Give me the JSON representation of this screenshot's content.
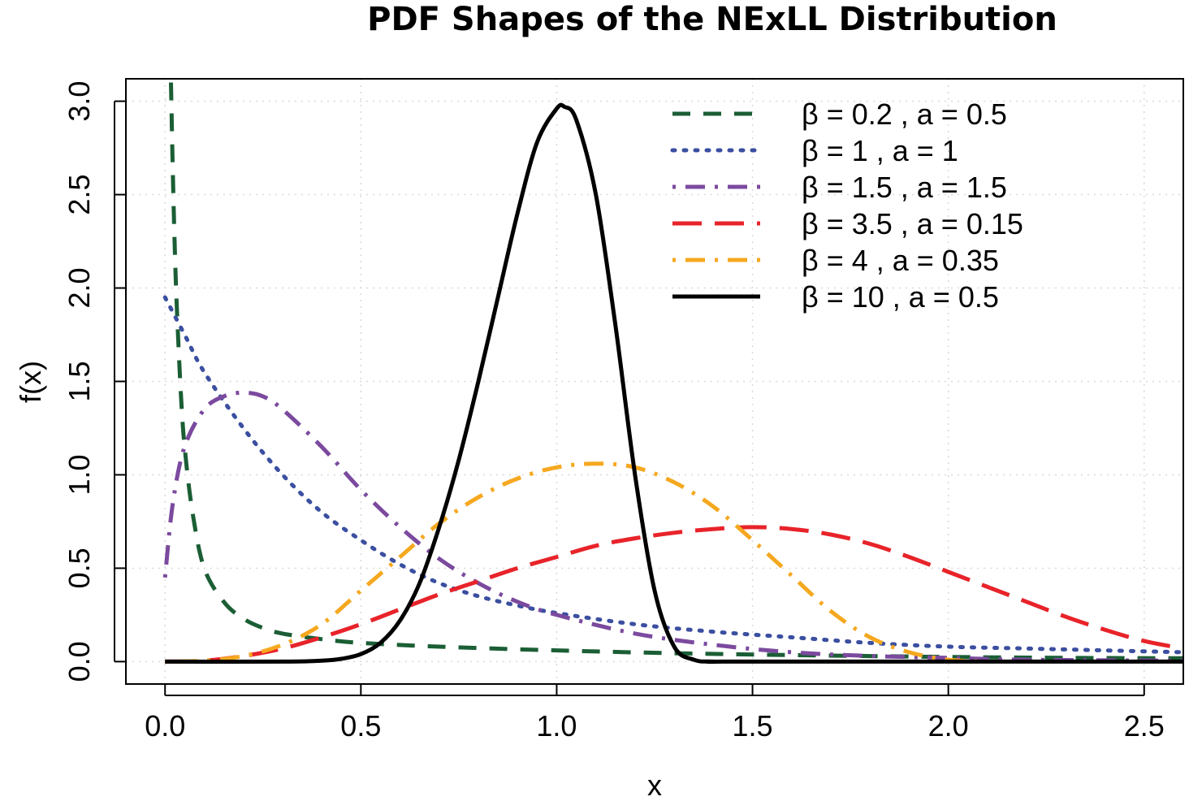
{
  "chart_data": {
    "type": "line",
    "title": "PDF Shapes of the NExLL Distribution",
    "xlabel": "x",
    "ylabel": "f(x)",
    "xlim": [
      -0.1,
      2.6
    ],
    "ylim": [
      -0.12,
      3.12
    ],
    "xticks": [
      0.0,
      0.5,
      1.0,
      1.5,
      2.0,
      2.5
    ],
    "xtick_labels": [
      "0.0",
      "0.5",
      "1.0",
      "1.5",
      "2.0",
      "2.5"
    ],
    "yticks": [
      0.0,
      0.5,
      1.0,
      1.5,
      2.0,
      2.5,
      3.0
    ],
    "ytick_labels": [
      "0.0",
      "0.5",
      "1.0",
      "1.5",
      "2.0",
      "2.5",
      "3.0"
    ],
    "grid": true,
    "legend_position": "top-right",
    "series": [
      {
        "name": "β = 0.2 ,  a = 0.5",
        "color": "#1B5E35",
        "style": "dashed",
        "x": [
          0.015,
          0.02,
          0.025,
          0.03,
          0.04,
          0.05,
          0.07,
          0.1,
          0.15,
          0.2,
          0.25,
          0.3,
          0.4,
          0.5,
          0.7,
          1.0,
          1.3,
          1.6,
          2.0,
          2.3,
          2.6
        ],
        "y": [
          3.1,
          2.6,
          2.2,
          1.9,
          1.45,
          1.15,
          0.8,
          0.5,
          0.32,
          0.23,
          0.18,
          0.15,
          0.12,
          0.1,
          0.08,
          0.06,
          0.045,
          0.035,
          0.025,
          0.02,
          0.018
        ]
      },
      {
        "name": "β = 1 ,  a = 1",
        "color": "#3B4FA0",
        "style": "dotted",
        "x": [
          0.0,
          0.05,
          0.1,
          0.2,
          0.3,
          0.4,
          0.5,
          0.6,
          0.7,
          0.8,
          0.9,
          1.0,
          1.2,
          1.4,
          1.6,
          1.8,
          2.0,
          2.2,
          2.4,
          2.6
        ],
        "y": [
          1.95,
          1.75,
          1.55,
          1.25,
          1.0,
          0.8,
          0.65,
          0.52,
          0.42,
          0.35,
          0.3,
          0.26,
          0.2,
          0.16,
          0.13,
          0.1,
          0.08,
          0.07,
          0.06,
          0.05
        ]
      },
      {
        "name": "β = 1.5 ,  a = 1.5",
        "color": "#7B4A9E",
        "style": "dotdash",
        "x": [
          0.0,
          0.02,
          0.05,
          0.1,
          0.15,
          0.2,
          0.25,
          0.3,
          0.4,
          0.5,
          0.6,
          0.7,
          0.8,
          0.9,
          1.0,
          1.2,
          1.4,
          1.6,
          1.8,
          2.0,
          2.2,
          2.6
        ],
        "y": [
          0.45,
          0.85,
          1.15,
          1.35,
          1.42,
          1.44,
          1.42,
          1.35,
          1.15,
          0.92,
          0.72,
          0.55,
          0.42,
          0.32,
          0.25,
          0.15,
          0.09,
          0.05,
          0.03,
          0.02,
          0.01,
          0.005
        ]
      },
      {
        "name": "β = 3.5 ,  a = 0.15",
        "color": "#E8232A",
        "style": "longdash",
        "x": [
          0.0,
          0.1,
          0.2,
          0.3,
          0.4,
          0.5,
          0.6,
          0.7,
          0.8,
          0.9,
          1.0,
          1.1,
          1.2,
          1.3,
          1.4,
          1.5,
          1.6,
          1.7,
          1.8,
          1.9,
          2.0,
          2.1,
          2.2,
          2.3,
          2.4,
          2.5,
          2.6
        ],
        "y": [
          0.0,
          0.005,
          0.03,
          0.07,
          0.13,
          0.2,
          0.28,
          0.36,
          0.43,
          0.5,
          0.56,
          0.62,
          0.66,
          0.69,
          0.71,
          0.72,
          0.71,
          0.68,
          0.63,
          0.56,
          0.48,
          0.4,
          0.32,
          0.24,
          0.17,
          0.11,
          0.07
        ]
      },
      {
        "name": "β = 4 ,  a = 0.35",
        "color": "#F5A81F",
        "style": "dotdash",
        "x": [
          0.0,
          0.1,
          0.2,
          0.3,
          0.4,
          0.5,
          0.6,
          0.7,
          0.8,
          0.9,
          1.0,
          1.1,
          1.2,
          1.3,
          1.4,
          1.5,
          1.6,
          1.7,
          1.8,
          1.9,
          2.0,
          2.1
        ],
        "y": [
          0.0,
          0.005,
          0.03,
          0.09,
          0.2,
          0.38,
          0.56,
          0.74,
          0.88,
          0.98,
          1.04,
          1.06,
          1.04,
          0.96,
          0.83,
          0.65,
          0.46,
          0.27,
          0.13,
          0.05,
          0.01,
          0.0
        ]
      },
      {
        "name": "β = 10 ,  a = 0.5",
        "color": "#000000",
        "style": "solid",
        "x": [
          0.0,
          0.3,
          0.4,
          0.45,
          0.5,
          0.55,
          0.6,
          0.65,
          0.7,
          0.75,
          0.8,
          0.85,
          0.9,
          0.95,
          1.0,
          1.02,
          1.05,
          1.1,
          1.15,
          1.2,
          1.25,
          1.3,
          1.35,
          1.4,
          1.5,
          2.6
        ],
        "y": [
          0.0,
          0.0,
          0.005,
          0.015,
          0.04,
          0.1,
          0.22,
          0.42,
          0.72,
          1.08,
          1.5,
          1.95,
          2.4,
          2.78,
          2.96,
          2.97,
          2.9,
          2.5,
          1.8,
          1.0,
          0.38,
          0.08,
          0.01,
          0.0,
          0.0,
          0.0
        ]
      }
    ]
  }
}
